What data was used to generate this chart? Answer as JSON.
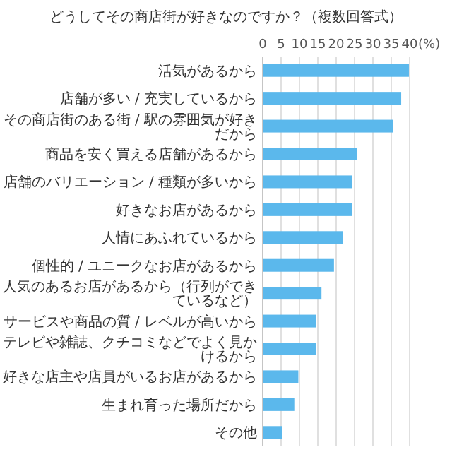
{
  "chart_data": {
    "type": "bar",
    "orientation": "horizontal",
    "title": "どうしてその商店街が好きなのですか？（複数回答式）",
    "xlabel": "(%)",
    "categories": [
      "活気があるから",
      "店舗が多い / 充実しているから",
      "その商店街のある街 / 駅の雰囲気が好きだから",
      "商品を安く買える店舗があるから",
      "店舗のバリエーション / 種類が多いから",
      "好きなお店があるから",
      "人情にあふれているから",
      "個性的 / ユニークなお店があるから",
      "人気のあるお店があるから（行列ができているなど）",
      "サービスや商品の質 / レベルが高いから",
      "テレビや雑誌、クチコミなどでよく見かけるから",
      "好きな店主や店員がいるお店があるから",
      "生まれ育った場所だから",
      "その他"
    ],
    "values": [
      39.8,
      37.7,
      35.4,
      25.6,
      24.4,
      24.4,
      21.9,
      19.4,
      16.0,
      14.5,
      14.5,
      9.7,
      8.6,
      5.3
    ],
    "color": "#5bb8ec",
    "xlim": [
      0,
      40
    ],
    "xticks": [
      0,
      5,
      10,
      15,
      20,
      25,
      30,
      35,
      40
    ],
    "grid": "x"
  }
}
